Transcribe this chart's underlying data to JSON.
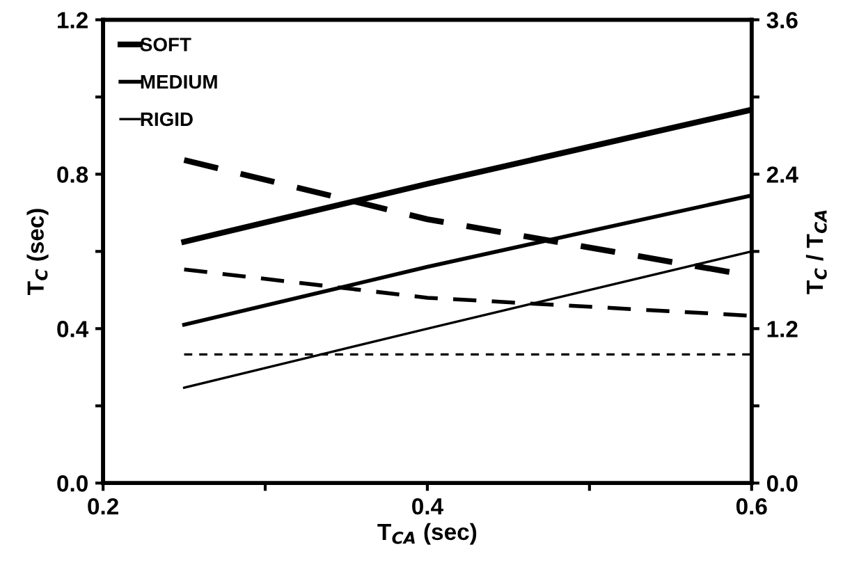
{
  "chart_data": {
    "type": "line",
    "xlabel": "T$_{CA}$ (sec)",
    "ylabel": "T$_{C}$ (sec)",
    "y2label": "T$_{C}$ / T$_{CA}$",
    "x": [
      0.25,
      0.4,
      0.6
    ],
    "series": [
      {
        "name": "SOFT",
        "color": "#000000",
        "values": [
          0.625,
          0.775,
          0.967
        ]
      },
      {
        "name": "MEDIUM",
        "color": "#000000",
        "values": [
          0.41,
          0.56,
          0.745
        ]
      },
      {
        "name": "RIGID",
        "color": "#000000",
        "values": [
          0.247,
          0.4,
          0.6
        ]
      },
      {
        "color": "#000000",
        "axis": "y2",
        "line_style": "dashed",
        "values": [
          2.51,
          2.05,
          1.61
        ]
      },
      {
        "color": "#000000",
        "axis": "y2",
        "line_style": "dashed",
        "values": [
          1.66,
          1.44,
          1.3
        ]
      },
      {
        "color": "#000000",
        "axis": "y2",
        "line_style": "dashed",
        "values": [
          1.0,
          1.0,
          1.0
        ]
      }
    ],
    "xlim": [
      0.2,
      0.6
    ],
    "xticks": [
      0.2,
      {
        "value": 0.3,
        "label": null
      },
      0.4,
      {
        "value": 0.5,
        "label": null
      },
      0.6
    ],
    "ylim": [
      0,
      1.2
    ],
    "yticks": [
      {
        "value": 0,
        "label": "0.0"
      },
      {
        "value": 0.2,
        "label": null
      },
      0.4,
      {
        "value": 0.6,
        "label": null
      },
      0.8,
      {
        "value": 1.0,
        "label": null
      },
      1.2
    ],
    "y2lim": [
      0,
      3.6
    ],
    "y2ticks": [
      {
        "value": 0,
        "label": "0.0"
      },
      {
        "value": 0.6,
        "label": null
      },
      1.2,
      {
        "value": 1.8,
        "label": null
      },
      2.4,
      {
        "value": 3.0,
        "label": null
      },
      3.6
    ],
    "legend": "top left",
    "grid": false,
    "line_style": "solid"
  }
}
